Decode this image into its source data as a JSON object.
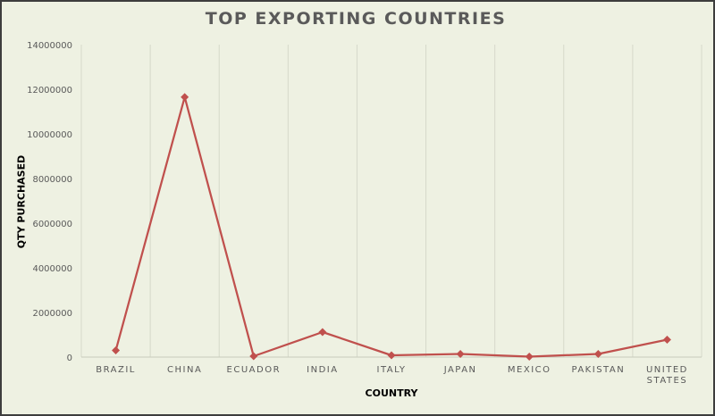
{
  "chart_data": {
    "type": "line",
    "title": "TOP EXPORTING COUNTRIES",
    "xlabel": "COUNTRY",
    "ylabel": "QTY PURCHASED",
    "categories": [
      "BRAZIL",
      "CHINA",
      "ECUADOR",
      "INDIA",
      "ITALY",
      "JAPAN",
      "MEXICO",
      "PAKISTAN",
      "UNITED STATES"
    ],
    "series": [
      {
        "values": [
          300000,
          11650000,
          40000,
          1120000,
          80000,
          140000,
          20000,
          140000,
          780000
        ],
        "color": "#c0504d",
        "marker": "diamond"
      }
    ],
    "ylim": [
      0,
      14000000
    ],
    "yticks": [
      0,
      2000000,
      4000000,
      6000000,
      8000000,
      10000000,
      12000000,
      14000000
    ],
    "ytick_labels": [
      "0",
      "2000000",
      "4000000",
      "6000000",
      "8000000",
      "10000000",
      "12000000",
      "14000000"
    ],
    "grid": "vertical",
    "legend": "none",
    "background_color": "#eef1e2",
    "gridline_color": "#d6d9ca"
  }
}
